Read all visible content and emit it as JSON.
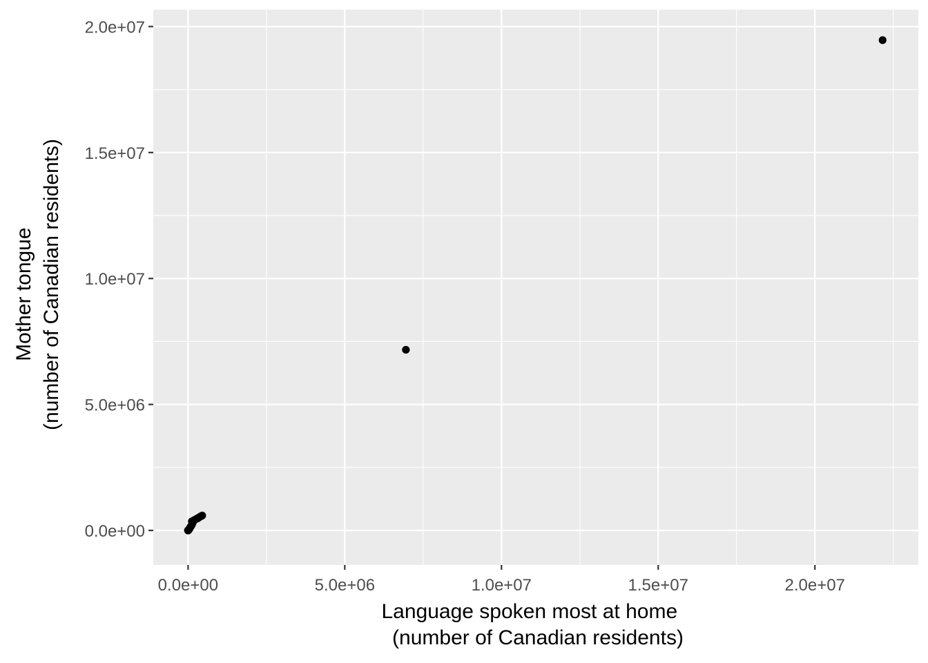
{
  "chart_data": {
    "type": "scatter",
    "xlabel": [
      "Language spoken most at home",
      "(number of Canadian residents)"
    ],
    "ylabel": [
      "Mother tongue",
      "(number of Canadian residents)"
    ],
    "xlim": [
      -1110000,
      23300000
    ],
    "ylim": [
      -1370000,
      20670000
    ],
    "x_ticks": [
      0,
      5000000,
      10000000,
      15000000,
      20000000
    ],
    "x_tick_labels": [
      "0.0e+00",
      "5.0e+06",
      "1.0e+07",
      "1.5e+07",
      "2.0e+07"
    ],
    "y_ticks": [
      0,
      5000000,
      10000000,
      15000000,
      20000000
    ],
    "y_tick_labels": [
      "0.0e+00",
      "5.0e+06",
      "1.0e+07",
      "1.5e+07",
      "2.0e+07"
    ],
    "grid": true,
    "points": [
      {
        "x": 22160000,
        "y": 19460000
      },
      {
        "x": 6950000,
        "y": 7170000
      },
      {
        "x": 450000,
        "y": 590000
      },
      {
        "x": 420000,
        "y": 570000
      },
      {
        "x": 380000,
        "y": 540000
      },
      {
        "x": 330000,
        "y": 500000
      },
      {
        "x": 290000,
        "y": 470000
      },
      {
        "x": 240000,
        "y": 440000
      },
      {
        "x": 200000,
        "y": 410000
      },
      {
        "x": 160000,
        "y": 380000
      },
      {
        "x": 120000,
        "y": 360000
      },
      {
        "x": 150000,
        "y": 310000
      },
      {
        "x": 130000,
        "y": 250000
      },
      {
        "x": 110000,
        "y": 200000
      },
      {
        "x": 90000,
        "y": 160000
      },
      {
        "x": 70000,
        "y": 130000
      },
      {
        "x": 60000,
        "y": 100000
      },
      {
        "x": 50000,
        "y": 80000
      },
      {
        "x": 40000,
        "y": 60000
      },
      {
        "x": 30000,
        "y": 40000
      },
      {
        "x": 20000,
        "y": 30000
      },
      {
        "x": 15000,
        "y": 20000
      },
      {
        "x": 10000,
        "y": 15000
      },
      {
        "x": 8000,
        "y": 10000
      },
      {
        "x": 5000,
        "y": 8000
      },
      {
        "x": 3000,
        "y": 5000
      },
      {
        "x": 2000,
        "y": 3000
      },
      {
        "x": 1000,
        "y": 2000
      },
      {
        "x": 500,
        "y": 1000
      },
      {
        "x": 200,
        "y": 500
      },
      {
        "x": 100,
        "y": 200
      },
      {
        "x": 50,
        "y": 100
      }
    ]
  }
}
